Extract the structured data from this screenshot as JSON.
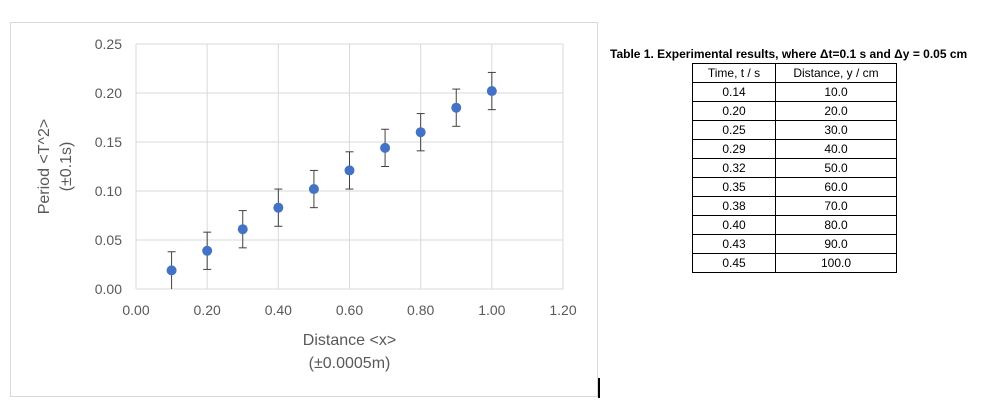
{
  "chart_data": {
    "type": "scatter",
    "title": "",
    "xlabel": "Distance <x>",
    "xlabel_sub": "(±0.0005m)",
    "ylabel": "Period <T^2>",
    "ylabel_sub": "(±0.1s)",
    "xlim": [
      0,
      1.2
    ],
    "ylim": [
      0,
      0.25
    ],
    "xticks": [
      "0.00",
      "0.20",
      "0.40",
      "0.60",
      "0.80",
      "1.00",
      "1.20"
    ],
    "yticks": [
      "0.00",
      "0.05",
      "0.10",
      "0.15",
      "0.20",
      "0.25"
    ],
    "grid": true,
    "legend": "none",
    "marker_color": "#4472c4",
    "series": [
      {
        "x": [
          0.1,
          0.2,
          0.3,
          0.4,
          0.5,
          0.6,
          0.7,
          0.8,
          0.9,
          1.0
        ],
        "y": [
          0.019,
          0.039,
          0.061,
          0.083,
          0.102,
          0.121,
          0.144,
          0.16,
          0.185,
          0.202
        ],
        "error_y": 0.019
      }
    ]
  },
  "table": {
    "caption": "Table 1. Experimental results, where Δt=0.1 s and Δy = 0.05 cm",
    "headers": [
      "Time, t / s",
      "Distance, y / cm"
    ],
    "rows": [
      [
        "0.14",
        "10.0"
      ],
      [
        "0.20",
        "20.0"
      ],
      [
        "0.25",
        "30.0"
      ],
      [
        "0.29",
        "40.0"
      ],
      [
        "0.32",
        "50.0"
      ],
      [
        "0.35",
        "60.0"
      ],
      [
        "0.38",
        "70.0"
      ],
      [
        "0.40",
        "80.0"
      ],
      [
        "0.43",
        "90.0"
      ],
      [
        "0.45",
        "100.0"
      ]
    ]
  }
}
